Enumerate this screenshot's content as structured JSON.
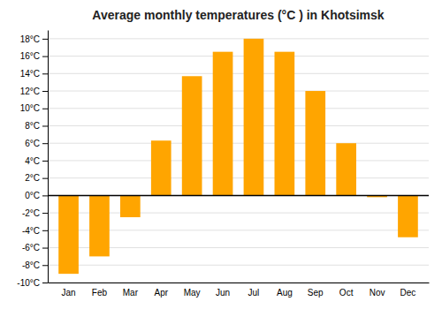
{
  "chart_data": {
    "type": "bar",
    "title": "Average monthly temperatures (°C ) in Khotsimsk",
    "categories": [
      "Jan",
      "Feb",
      "Mar",
      "Apr",
      "May",
      "Jun",
      "Jul",
      "Aug",
      "Sep",
      "Oct",
      "Nov",
      "Dec"
    ],
    "values": [
      -9,
      -7,
      -2.5,
      6.3,
      13.7,
      16.5,
      18,
      16.5,
      12,
      6,
      -0.2,
      -4.8
    ],
    "color": "#FFA500",
    "ylim": [
      -10,
      19
    ],
    "yticks": [
      {
        "value": -10,
        "label": "-10°C"
      },
      {
        "value": -8,
        "label": "-8°C"
      },
      {
        "value": -6,
        "label": "-6°C"
      },
      {
        "value": -4,
        "label": "-4°C"
      },
      {
        "value": -2,
        "label": "-2°C"
      },
      {
        "value": 0,
        "label": "0°C"
      },
      {
        "value": 2,
        "label": "2°C"
      },
      {
        "value": 4,
        "label": "4°C"
      },
      {
        "value": 6,
        "label": "6°C"
      },
      {
        "value": 8,
        "label": "8°C"
      },
      {
        "value": 10,
        "label": "10°C"
      },
      {
        "value": 12,
        "label": "12°C"
      },
      {
        "value": 14,
        "label": "14°C"
      },
      {
        "value": 16,
        "label": "16°C"
      },
      {
        "value": 18,
        "label": "18°C"
      }
    ],
    "grid": true
  }
}
